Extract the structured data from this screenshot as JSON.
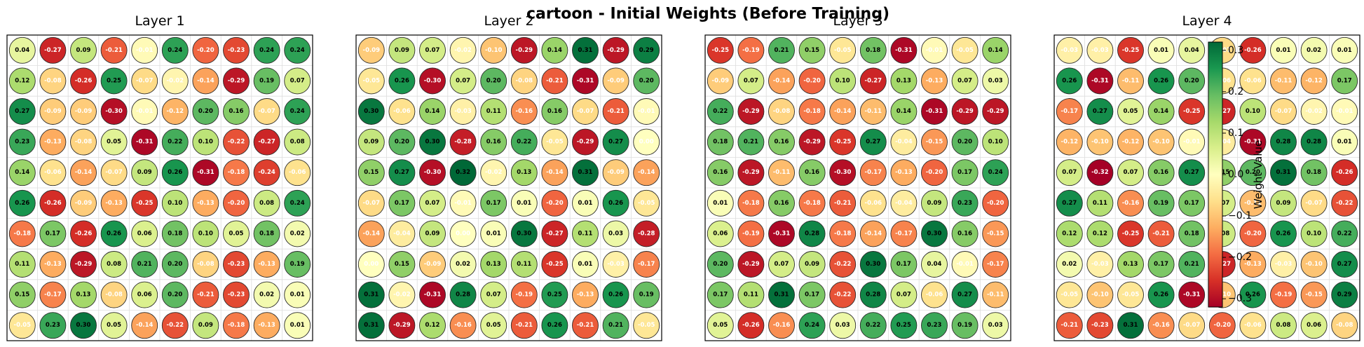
{
  "title": "cartoon - Initial Weights (Before Training)",
  "colorbar": {
    "label": "Weight Value",
    "ticks": [
      0.3,
      0.2,
      0.1,
      0.0,
      -0.1,
      -0.2,
      -0.3
    ],
    "tick_labels": [
      "0.3",
      "0.2",
      "0.1",
      "0.0",
      "−0.1",
      "−0.2",
      "−0.3"
    ],
    "vmin": -0.32,
    "vmax": 0.32,
    "colormap": "RdYlGn"
  },
  "chart_data": [
    {
      "type": "heatmap",
      "title": "Layer 1",
      "rows": 10,
      "cols": 10,
      "values": [
        [
          0.04,
          -0.27,
          0.09,
          -0.21,
          -0.01,
          0.24,
          -0.2,
          -0.23,
          0.24,
          0.24
        ],
        [
          0.12,
          -0.08,
          -0.26,
          0.25,
          -0.07,
          -0.02,
          -0.14,
          -0.29,
          0.19,
          0.07
        ],
        [
          0.27,
          -0.09,
          -0.09,
          -0.3,
          -0.01,
          -0.12,
          0.2,
          0.16,
          -0.07,
          0.24
        ],
        [
          0.23,
          -0.13,
          -0.08,
          0.05,
          -0.31,
          0.22,
          0.1,
          -0.22,
          -0.27,
          0.08
        ],
        [
          0.14,
          -0.06,
          -0.14,
          -0.07,
          0.09,
          0.26,
          -0.31,
          -0.18,
          -0.24,
          -0.06
        ],
        [
          0.26,
          -0.26,
          -0.09,
          -0.13,
          -0.25,
          0.1,
          -0.13,
          -0.2,
          0.08,
          0.24
        ],
        [
          -0.18,
          0.17,
          -0.26,
          0.26,
          0.06,
          0.18,
          0.1,
          0.05,
          0.18,
          0.02
        ],
        [
          0.11,
          -0.13,
          -0.29,
          0.08,
          0.21,
          0.2,
          -0.08,
          -0.23,
          -0.13,
          0.19
        ],
        [
          0.15,
          -0.17,
          0.13,
          -0.08,
          0.06,
          0.2,
          -0.21,
          -0.23,
          0.02,
          0.01
        ],
        [
          -0.05,
          0.23,
          0.3,
          0.05,
          -0.14,
          -0.22,
          0.09,
          -0.18,
          -0.13,
          0.01
        ]
      ]
    },
    {
      "type": "heatmap",
      "title": "Layer 2",
      "rows": 10,
      "cols": 10,
      "values": [
        [
          -0.09,
          0.09,
          0.07,
          -0.02,
          -0.1,
          -0.29,
          0.14,
          0.31,
          -0.29,
          0.29
        ],
        [
          -0.05,
          0.26,
          -0.3,
          0.07,
          0.2,
          -0.08,
          -0.21,
          -0.31,
          -0.09,
          0.2
        ],
        [
          0.3,
          -0.06,
          0.14,
          -0.03,
          0.11,
          -0.16,
          0.16,
          -0.07,
          -0.21,
          -0.01
        ],
        [
          0.09,
          0.2,
          0.3,
          -0.28,
          0.16,
          0.22,
          -0.05,
          -0.29,
          0.27,
          0.0
        ],
        [
          0.15,
          0.27,
          -0.3,
          0.32,
          -0.02,
          0.13,
          -0.14,
          0.31,
          -0.09,
          -0.14
        ],
        [
          -0.07,
          0.17,
          0.07,
          -0.01,
          0.17,
          0.01,
          -0.2,
          0.01,
          0.26,
          -0.05
        ],
        [
          -0.14,
          -0.04,
          0.09,
          0.0,
          0.01,
          0.3,
          -0.27,
          0.11,
          0.03,
          -0.28
        ],
        [
          0.0,
          0.15,
          -0.09,
          0.02,
          0.13,
          0.11,
          -0.25,
          0.01,
          -0.03,
          -0.17
        ],
        [
          0.31,
          -0.02,
          -0.31,
          0.28,
          0.07,
          -0.19,
          0.25,
          -0.13,
          0.26,
          0.19
        ],
        [
          0.31,
          -0.29,
          0.12,
          -0.16,
          0.05,
          -0.21,
          0.26,
          -0.21,
          0.21,
          -0.05
        ]
      ]
    },
    {
      "type": "heatmap",
      "title": "Layer 3",
      "rows": 10,
      "cols": 10,
      "values": [
        [
          -0.25,
          -0.19,
          0.21,
          0.15,
          -0.05,
          0.18,
          -0.31,
          -0.01,
          -0.05,
          0.14
        ],
        [
          -0.09,
          0.07,
          -0.14,
          -0.2,
          0.1,
          -0.27,
          0.13,
          -0.13,
          0.07,
          0.03
        ],
        [
          0.22,
          -0.29,
          -0.08,
          -0.18,
          -0.14,
          -0.11,
          0.14,
          -0.31,
          -0.29,
          -0.29
        ],
        [
          0.18,
          0.21,
          0.16,
          -0.29,
          -0.25,
          0.27,
          -0.04,
          -0.15,
          0.2,
          0.1
        ],
        [
          0.16,
          -0.29,
          -0.11,
          0.16,
          -0.3,
          -0.17,
          -0.13,
          -0.2,
          0.17,
          0.24
        ],
        [
          0.01,
          -0.18,
          0.16,
          -0.18,
          -0.21,
          -0.06,
          -0.04,
          0.09,
          0.23,
          -0.2
        ],
        [
          0.06,
          -0.19,
          -0.31,
          0.28,
          -0.18,
          -0.14,
          -0.17,
          0.3,
          0.16,
          -0.15
        ],
        [
          0.2,
          -0.29,
          0.07,
          0.09,
          -0.22,
          0.3,
          0.17,
          0.04,
          -0.01,
          -0.17
        ],
        [
          0.17,
          0.11,
          0.31,
          0.17,
          -0.22,
          0.28,
          0.07,
          -0.06,
          0.27,
          -0.11
        ],
        [
          0.05,
          -0.26,
          -0.16,
          0.24,
          0.03,
          0.22,
          0.25,
          0.23,
          0.19,
          0.03
        ]
      ]
    },
    {
      "type": "heatmap",
      "title": "Layer 4",
      "rows": 10,
      "cols": 10,
      "values": [
        [
          -0.03,
          -0.03,
          -0.25,
          0.01,
          0.04,
          -0.07,
          -0.26,
          0.01,
          0.02,
          0.01
        ],
        [
          0.26,
          -0.31,
          -0.11,
          0.26,
          0.2,
          -0.06,
          -0.06,
          -0.11,
          -0.12,
          0.17
        ],
        [
          -0.17,
          0.27,
          0.05,
          0.14,
          -0.25,
          -0.27,
          0.1,
          -0.07,
          -0.02,
          -0.01
        ],
        [
          -0.12,
          -0.1,
          -0.12,
          -0.1,
          -0.01,
          -0.04,
          -0.31,
          0.28,
          0.28,
          0.01
        ],
        [
          0.07,
          -0.32,
          0.07,
          0.16,
          0.27,
          0.15,
          0.2,
          0.31,
          0.18,
          -0.26
        ],
        [
          0.27,
          0.11,
          -0.16,
          0.19,
          0.17,
          0.07,
          -0.11,
          0.09,
          -0.07,
          -0.22
        ],
        [
          0.12,
          0.12,
          -0.25,
          -0.21,
          0.18,
          0.08,
          -0.2,
          0.26,
          0.1,
          0.22
        ],
        [
          0.02,
          -0.03,
          0.13,
          0.17,
          0.21,
          -0.27,
          -0.13,
          -0.03,
          -0.1,
          0.27
        ],
        [
          -0.05,
          -0.1,
          -0.05,
          0.26,
          -0.31,
          -0.1,
          0.26,
          -0.19,
          -0.15,
          0.29
        ],
        [
          -0.21,
          -0.23,
          0.31,
          -0.16,
          -0.07,
          -0.2,
          -0.06,
          0.08,
          0.06,
          -0.08
        ]
      ]
    }
  ]
}
